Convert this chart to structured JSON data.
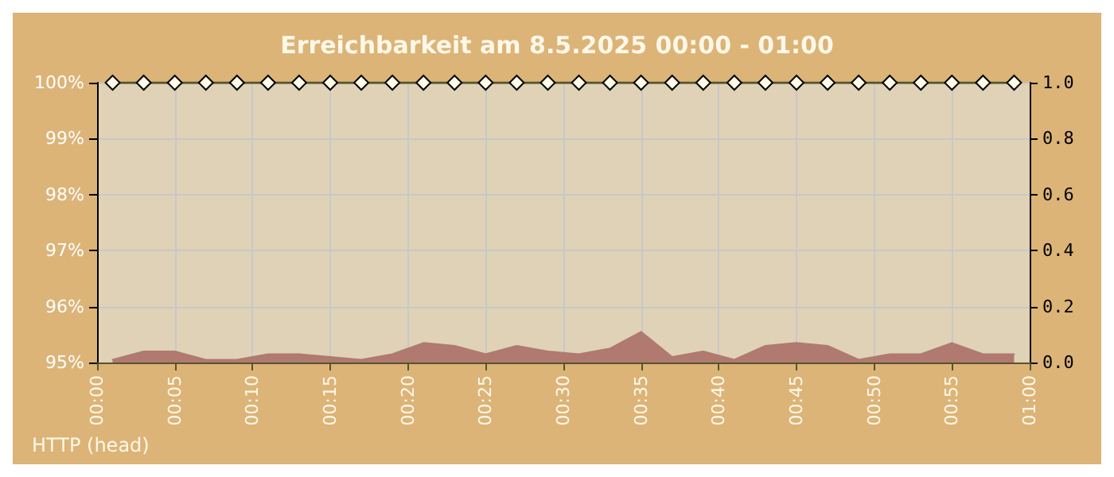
{
  "chart_data": {
    "type": "line",
    "title": "Erreichbarkeit am 8.5.2025 00:00 - 01:00",
    "x": [
      1,
      3,
      5,
      7,
      9,
      11,
      13,
      15,
      17,
      19,
      21,
      23,
      25,
      27,
      29,
      31,
      33,
      35,
      37,
      39,
      41,
      43,
      45,
      47,
      49,
      51,
      53,
      55,
      57,
      59
    ],
    "series": [
      {
        "color": "#55552a",
        "marker": "diamond",
        "line_style": "solid",
        "values": [
          100,
          100,
          100,
          100,
          100,
          100,
          100,
          100,
          100,
          100,
          100,
          100,
          100,
          100,
          100,
          100,
          100,
          100,
          100,
          100,
          100,
          100,
          100,
          100,
          100,
          100,
          100,
          100,
          100,
          100
        ]
      },
      {
        "type": "area",
        "axis": "y2",
        "color": "#b07a70",
        "marker": "none",
        "values": [
          0.01,
          0.04,
          0.04,
          0.01,
          0.01,
          0.03,
          0.03,
          0.02,
          0.01,
          0.03,
          0.07,
          0.06,
          0.03,
          0.06,
          0.04,
          0.03,
          0.05,
          0.11,
          0.02,
          0.04,
          0.01,
          0.06,
          0.07,
          0.06,
          0.01,
          0.03,
          0.03,
          0.07,
          0.03,
          0.03
        ]
      }
    ],
    "xlim": [
      0,
      60
    ],
    "xticks": [
      {
        "value": 0,
        "label": "00:00"
      },
      {
        "value": 5,
        "label": "00:05"
      },
      {
        "value": 10,
        "label": "00:10"
      },
      {
        "value": 15,
        "label": "00:15"
      },
      {
        "value": 20,
        "label": "00:20"
      },
      {
        "value": 25,
        "label": "00:25"
      },
      {
        "value": 30,
        "label": "00:30"
      },
      {
        "value": 35,
        "label": "00:35"
      },
      {
        "value": 40,
        "label": "00:40"
      },
      {
        "value": 45,
        "label": "00:45"
      },
      {
        "value": 50,
        "label": "00:50"
      },
      {
        "value": 55,
        "label": "00:55"
      },
      {
        "value": 60,
        "label": "01:00"
      }
    ],
    "ylim": [
      95,
      100
    ],
    "yticks": [
      {
        "value": 95,
        "label": "95%"
      },
      {
        "value": 96,
        "label": "96%"
      },
      {
        "value": 97,
        "label": "97%"
      },
      {
        "value": 98,
        "label": "98%"
      },
      {
        "value": 99,
        "label": "99%"
      },
      {
        "value": 100,
        "label": "100%"
      }
    ],
    "y2lim": [
      0,
      1
    ],
    "y2ticks": [
      {
        "value": 0,
        "label": "0.0"
      },
      {
        "value": 0.2,
        "label": "0.2"
      },
      {
        "value": 0.4,
        "label": "0.4"
      },
      {
        "value": 0.6,
        "label": "0.6"
      },
      {
        "value": 0.8,
        "label": "0.8"
      },
      {
        "value": 1,
        "label": "1.0"
      }
    ],
    "grid": true,
    "annotations": [
      "HTTP (head)"
    ]
  }
}
